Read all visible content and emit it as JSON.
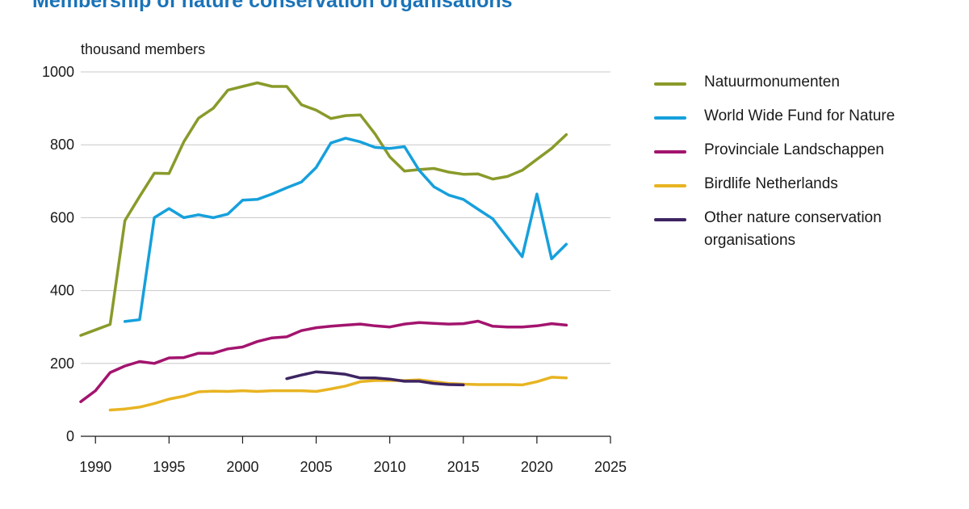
{
  "title": "Membership of nature conservation organisations",
  "chart_data": {
    "type": "line",
    "ylabel": "thousand members",
    "xlim": [
      1989,
      2025
    ],
    "ylim": [
      0,
      1000
    ],
    "xticks": [
      1990,
      1995,
      2000,
      2005,
      2010,
      2015,
      2020,
      2025
    ],
    "yticks": [
      0,
      200,
      400,
      600,
      800,
      1000
    ],
    "grid": "horizontal",
    "legend_position": "right",
    "series": [
      {
        "name": "Natuurmonumenten",
        "color": "#8a9a2a",
        "points": [
          [
            1989,
            277
          ],
          [
            1990,
            292
          ],
          [
            1991,
            307
          ],
          [
            1992,
            592
          ],
          [
            1993,
            658
          ],
          [
            1994,
            722
          ],
          [
            1995,
            721
          ],
          [
            1996,
            808
          ],
          [
            1997,
            873
          ],
          [
            1998,
            900
          ],
          [
            1999,
            950
          ],
          [
            2000,
            960
          ],
          [
            2001,
            970
          ],
          [
            2002,
            960
          ],
          [
            2003,
            960
          ],
          [
            2004,
            910
          ],
          [
            2005,
            895
          ],
          [
            2006,
            872
          ],
          [
            2007,
            880
          ],
          [
            2008,
            882
          ],
          [
            2009,
            830
          ],
          [
            2010,
            767
          ],
          [
            2011,
            728
          ],
          [
            2012,
            732
          ],
          [
            2013,
            735
          ],
          [
            2014,
            725
          ],
          [
            2015,
            719
          ],
          [
            2016,
            720
          ],
          [
            2017,
            706
          ],
          [
            2018,
            713
          ],
          [
            2019,
            730
          ],
          [
            2020,
            760
          ],
          [
            2021,
            790
          ],
          [
            2022,
            828
          ]
        ]
      },
      {
        "name": "World Wide Fund for Nature",
        "color": "#16a0dc",
        "points": [
          [
            1992,
            315
          ],
          [
            1993,
            320
          ],
          [
            1994,
            600
          ],
          [
            1995,
            625
          ],
          [
            1996,
            600
          ],
          [
            1997,
            608
          ],
          [
            1998,
            600
          ],
          [
            1999,
            610
          ],
          [
            2000,
            648
          ],
          [
            2001,
            650
          ],
          [
            2002,
            665
          ],
          [
            2003,
            682
          ],
          [
            2004,
            698
          ],
          [
            2005,
            738
          ],
          [
            2006,
            805
          ],
          [
            2007,
            818
          ],
          [
            2008,
            808
          ],
          [
            2009,
            793
          ],
          [
            2010,
            790
          ],
          [
            2011,
            795
          ],
          [
            2012,
            730
          ],
          [
            2013,
            685
          ],
          [
            2014,
            662
          ],
          [
            2015,
            650
          ],
          [
            2016,
            623
          ],
          [
            2017,
            597
          ],
          [
            2018,
            545
          ],
          [
            2019,
            493
          ],
          [
            2020,
            665
          ],
          [
            2021,
            487
          ],
          [
            2022,
            527
          ]
        ]
      },
      {
        "name": "Provinciale Landschappen",
        "color": "#a3146e",
        "points": [
          [
            1989,
            95
          ],
          [
            1990,
            125
          ],
          [
            1991,
            175
          ],
          [
            1992,
            193
          ],
          [
            1993,
            205
          ],
          [
            1994,
            200
          ],
          [
            1995,
            215
          ],
          [
            1996,
            216
          ],
          [
            1997,
            228
          ],
          [
            1998,
            228
          ],
          [
            1999,
            240
          ],
          [
            2000,
            245
          ],
          [
            2001,
            260
          ],
          [
            2002,
            270
          ],
          [
            2003,
            273
          ],
          [
            2004,
            290
          ],
          [
            2005,
            298
          ],
          [
            2006,
            302
          ],
          [
            2007,
            305
          ],
          [
            2008,
            308
          ],
          [
            2009,
            303
          ],
          [
            2010,
            300
          ],
          [
            2011,
            308
          ],
          [
            2012,
            312
          ],
          [
            2013,
            310
          ],
          [
            2014,
            308
          ],
          [
            2015,
            309
          ],
          [
            2016,
            316
          ],
          [
            2017,
            302
          ],
          [
            2018,
            300
          ],
          [
            2019,
            300
          ],
          [
            2020,
            303
          ],
          [
            2021,
            309
          ],
          [
            2022,
            305
          ]
        ]
      },
      {
        "name": "Birdlife Netherlands",
        "color": "#e8b422",
        "points": [
          [
            1991,
            72
          ],
          [
            1992,
            75
          ],
          [
            1993,
            80
          ],
          [
            1994,
            90
          ],
          [
            1995,
            102
          ],
          [
            1996,
            110
          ],
          [
            1997,
            122
          ],
          [
            1998,
            124
          ],
          [
            1999,
            123
          ],
          [
            2000,
            125
          ],
          [
            2001,
            123
          ],
          [
            2002,
            125
          ],
          [
            2003,
            125
          ],
          [
            2004,
            125
          ],
          [
            2005,
            123
          ],
          [
            2006,
            130
          ],
          [
            2007,
            138
          ],
          [
            2008,
            150
          ],
          [
            2009,
            153
          ],
          [
            2010,
            153
          ],
          [
            2011,
            153
          ],
          [
            2012,
            155
          ],
          [
            2013,
            150
          ],
          [
            2014,
            145
          ],
          [
            2015,
            143
          ],
          [
            2016,
            142
          ],
          [
            2017,
            142
          ],
          [
            2018,
            142
          ],
          [
            2019,
            141
          ],
          [
            2020,
            150
          ],
          [
            2021,
            162
          ],
          [
            2022,
            160
          ]
        ]
      },
      {
        "name": "Other nature conservation organisations",
        "color": "#3d2462",
        "points": [
          [
            2003,
            158
          ],
          [
            2004,
            168
          ],
          [
            2005,
            177
          ],
          [
            2006,
            174
          ],
          [
            2007,
            170
          ],
          [
            2008,
            160
          ],
          [
            2009,
            160
          ],
          [
            2010,
            157
          ],
          [
            2011,
            151
          ],
          [
            2012,
            151
          ],
          [
            2013,
            145
          ],
          [
            2014,
            142
          ],
          [
            2015,
            141
          ]
        ]
      }
    ]
  }
}
